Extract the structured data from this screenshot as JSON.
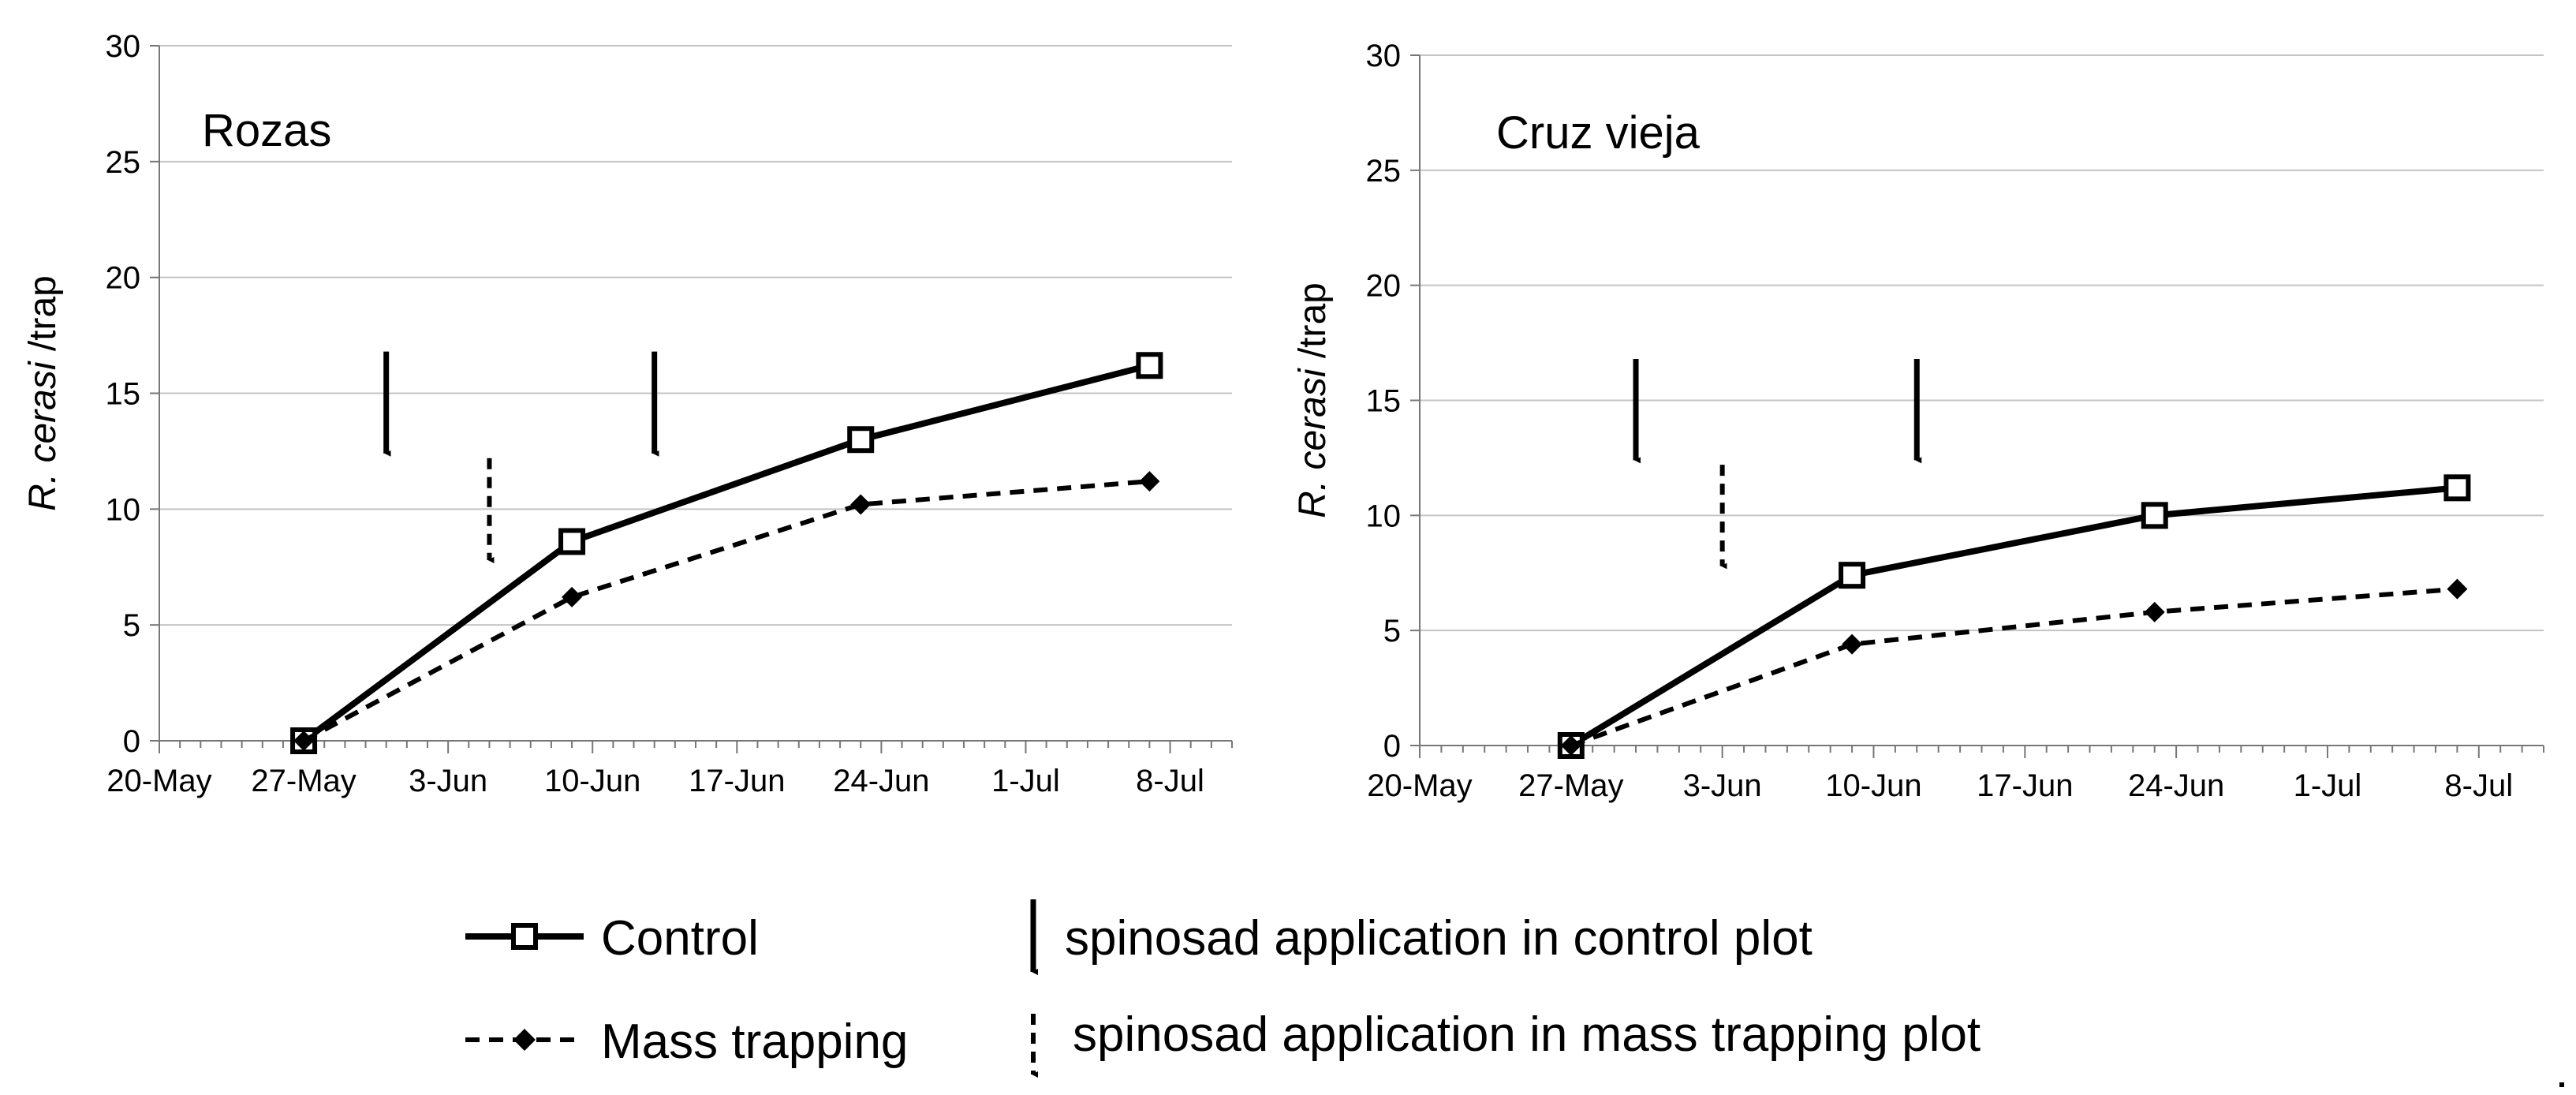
{
  "chart_data": [
    {
      "type": "line",
      "title": "Rozas",
      "ylabel_italic": "R. cerasi",
      "ylabel_rest": " /trap",
      "xlabel": "",
      "ylim": [
        0,
        30
      ],
      "yticks": [
        0,
        5,
        10,
        15,
        20,
        25,
        30
      ],
      "x_tick_labels": [
        "20-May",
        "27-May",
        "3-Jun",
        "10-Jun",
        "17-Jun",
        "24-Jun",
        "1-Jul",
        "8-Jul"
      ],
      "x_day_range": [
        0,
        52
      ],
      "grid": true,
      "series": [
        {
          "name": "Control",
          "x_days": [
            7,
            20,
            34,
            48
          ],
          "values": [
            0,
            8.6,
            13.0,
            16.2
          ]
        },
        {
          "name": "Mass trapping",
          "x_days": [
            7,
            20,
            34,
            48
          ],
          "values": [
            0,
            6.2,
            10.2,
            11.2
          ]
        }
      ],
      "control_applications_days": [
        11,
        24
      ],
      "mass_trapping_applications_days": [
        16
      ]
    },
    {
      "type": "line",
      "title": "Cruz vieja",
      "ylabel_italic": "R. cerasi",
      "ylabel_rest": " /trap",
      "xlabel": "",
      "ylim": [
        0,
        30
      ],
      "yticks": [
        0,
        5,
        10,
        15,
        20,
        25,
        30
      ],
      "x_tick_labels": [
        "20-May",
        "27-May",
        "3-Jun",
        "10-Jun",
        "17-Jun",
        "24-Jun",
        "1-Jul",
        "8-Jul"
      ],
      "x_day_range": [
        0,
        52
      ],
      "grid": true,
      "series": [
        {
          "name": "Control",
          "x_days": [
            7,
            20,
            34,
            48
          ],
          "values": [
            0,
            7.4,
            10.0,
            11.2
          ]
        },
        {
          "name": "Mass trapping",
          "x_days": [
            7,
            20,
            34,
            48
          ],
          "values": [
            0,
            4.4,
            5.8,
            6.8
          ]
        }
      ],
      "control_applications_days": [
        10,
        23
      ],
      "mass_trapping_applications_days": [
        14
      ]
    }
  ],
  "legend": {
    "control_label": "Control",
    "mass_trapping_label": "Mass trapping",
    "control_application_label": "spinosad application in control plot",
    "mass_trapping_application_label": "spinosad application in mass trapping plot"
  }
}
